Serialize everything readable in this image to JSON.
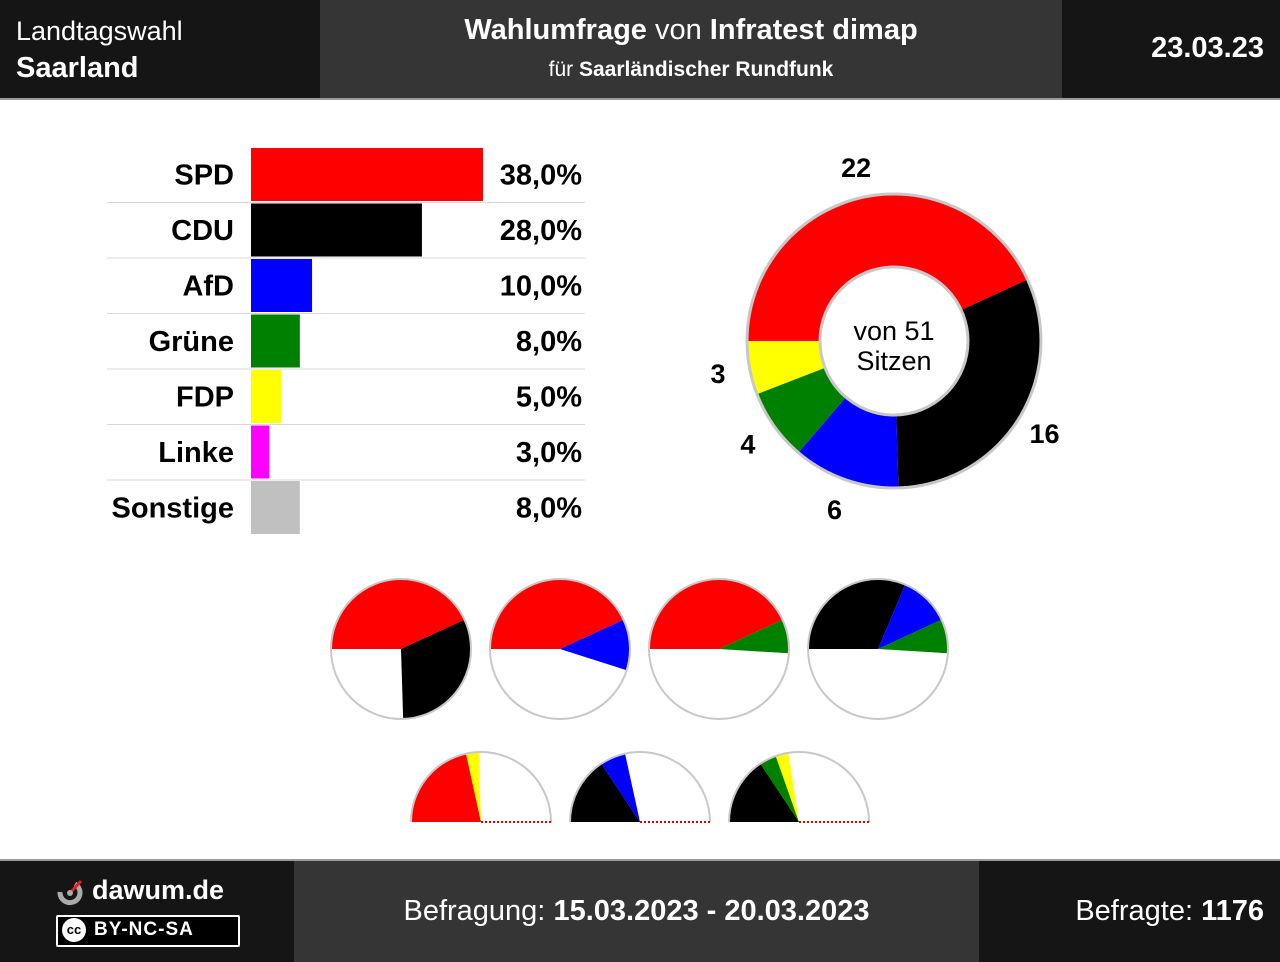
{
  "header": {
    "election": "Landtagswahl",
    "state": "Saarland",
    "title_bold1": "Wahlumfrage",
    "title_mid": " von ",
    "title_bold2": "Infratest dimap",
    "subtitle_pre": "für ",
    "subtitle_bold": "Saarländischer Rundfunk",
    "date": "23.03.23"
  },
  "footer": {
    "brand": "dawum.de",
    "license": "BY-NC-SA",
    "license_icon": "cc",
    "period_label": "Befragung: ",
    "period_value": "15.03.2023 - 20.03.2023",
    "respondents_label": "Befragte: ",
    "respondents_value": "1176"
  },
  "chart_data": {
    "type": "bar",
    "title": "Wahlumfrage Landtagswahl Saarland",
    "categories": [
      "SPD",
      "CDU",
      "AfD",
      "Grüne",
      "FDP",
      "Linke",
      "Sonstige"
    ],
    "values": [
      38.0,
      28.0,
      10.0,
      8.0,
      5.0,
      3.0,
      8.0
    ],
    "value_labels": [
      "38,0%",
      "28,0%",
      "10,0%",
      "8,0%",
      "5,0%",
      "3,0%",
      "8,0%"
    ],
    "colors": [
      "#ff0000",
      "#000000",
      "#0000ff",
      "#008000",
      "#ffff00",
      "#ff00ff",
      "#c0c0c0"
    ],
    "seats": {
      "type": "donut",
      "center_label_line1": "von 51",
      "center_label_line2": "Sitzen",
      "total": 51,
      "parties": [
        {
          "party": "SPD",
          "seats": 22,
          "color": "#ff0000"
        },
        {
          "party": "CDU",
          "seats": 16,
          "color": "#000000"
        },
        {
          "party": "AfD",
          "seats": 6,
          "color": "#0000ff"
        },
        {
          "party": "Grüne",
          "seats": 4,
          "color": "#008000"
        },
        {
          "party": "FDP",
          "seats": 3,
          "color": "#ffff00"
        }
      ]
    },
    "coalitions": [
      {
        "parties": [
          "SPD",
          "CDU"
        ],
        "seats": [
          22,
          16
        ],
        "colors": [
          "#ff0000",
          "#000000"
        ],
        "style": "full"
      },
      {
        "parties": [
          "SPD",
          "AfD"
        ],
        "seats": [
          22,
          6
        ],
        "colors": [
          "#ff0000",
          "#0000ff"
        ],
        "style": "full"
      },
      {
        "parties": [
          "SPD",
          "Grüne"
        ],
        "seats": [
          22,
          4
        ],
        "colors": [
          "#ff0000",
          "#008000"
        ],
        "style": "full"
      },
      {
        "parties": [
          "CDU",
          "AfD",
          "Grüne"
        ],
        "seats": [
          16,
          6,
          4
        ],
        "colors": [
          "#000000",
          "#0000ff",
          "#008000"
        ],
        "style": "full"
      },
      {
        "parties": [
          "SPD",
          "FDP"
        ],
        "seats": [
          22,
          3
        ],
        "colors": [
          "#ff0000",
          "#ffff00"
        ],
        "style": "half"
      },
      {
        "parties": [
          "CDU",
          "AfD"
        ],
        "seats": [
          16,
          6
        ],
        "colors": [
          "#000000",
          "#0000ff"
        ],
        "style": "half"
      },
      {
        "parties": [
          "CDU",
          "Grüne",
          "FDP"
        ],
        "seats": [
          16,
          4,
          3
        ],
        "colors": [
          "#000000",
          "#008000",
          "#ffff00"
        ],
        "style": "half"
      }
    ]
  }
}
